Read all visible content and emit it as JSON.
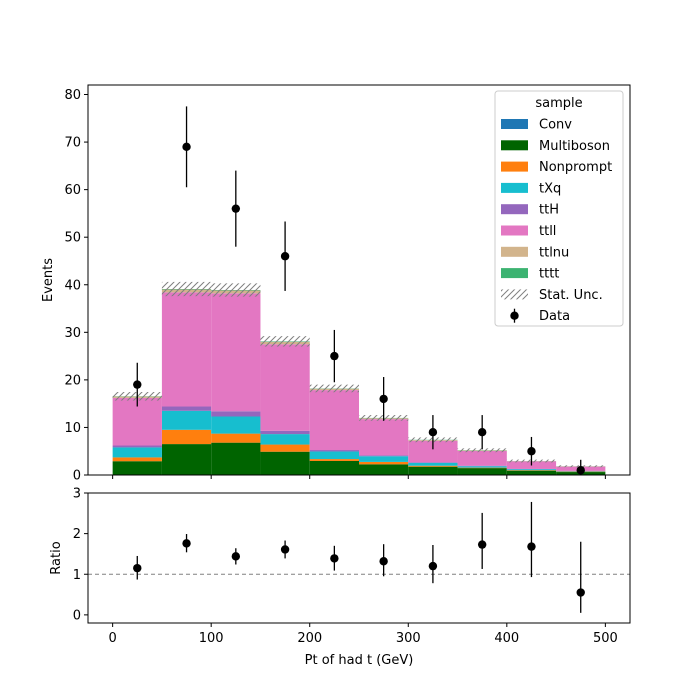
{
  "chart_data": [
    {
      "type": "bar",
      "subtype": "stacked-histogram",
      "xlabel": "Pt of had t (GeV)",
      "ylabel": "Events",
      "bin_edges": [
        0,
        50,
        100,
        150,
        200,
        250,
        300,
        350,
        400,
        450,
        500
      ],
      "xlim": [
        -25,
        525
      ],
      "ylim": [
        0,
        82
      ],
      "yticks": [
        0,
        10,
        20,
        30,
        40,
        50,
        60,
        70,
        80
      ],
      "legend": {
        "title": "sample",
        "placement": "top-right"
      },
      "series": [
        {
          "name": "Conv",
          "color": "#1f77b4",
          "values": [
            0.1,
            0.1,
            0.1,
            0.1,
            0.05,
            0.05,
            0.05,
            0.05,
            0.02,
            0.02
          ]
        },
        {
          "name": "Multiboson",
          "color": "#006400",
          "values": [
            2.8,
            6.4,
            6.7,
            4.8,
            2.9,
            2.2,
            1.7,
            1.4,
            0.9,
            0.6
          ]
        },
        {
          "name": "Nonprompt",
          "color": "#ff7f0e",
          "values": [
            0.8,
            3.0,
            1.9,
            1.5,
            0.4,
            0.5,
            0.2,
            0.1,
            0.1,
            0.1
          ]
        },
        {
          "name": "tXq",
          "color": "#17becf",
          "values": [
            2.1,
            4.0,
            3.6,
            2.2,
            1.6,
            1.2,
            0.6,
            0.3,
            0.2,
            0.1
          ]
        },
        {
          "name": "ttH",
          "color": "#9467bd",
          "values": [
            0.4,
            0.9,
            1.1,
            0.7,
            0.3,
            0.2,
            0.15,
            0.1,
            0.05,
            0.05
          ]
        },
        {
          "name": "ttll",
          "color": "#e377c2",
          "values": [
            10.0,
            24.0,
            24.8,
            18.2,
            12.6,
            7.6,
            4.5,
            3.1,
            1.6,
            0.9
          ]
        },
        {
          "name": "ttlnu",
          "color": "#d2b48c",
          "values": [
            0.3,
            0.6,
            0.6,
            0.5,
            0.3,
            0.2,
            0.15,
            0.1,
            0.05,
            0.05
          ]
        },
        {
          "name": "tttt",
          "color": "#3cb371",
          "values": [
            0.05,
            0.1,
            0.1,
            0.1,
            0.05,
            0.05,
            0.05,
            0.05,
            0.02,
            0.02
          ]
        }
      ],
      "stat_unc": {
        "label": "Stat. Unc.",
        "values": [
          0.9,
          1.5,
          1.4,
          1.1,
          0.8,
          0.6,
          0.5,
          0.4,
          0.3,
          0.2
        ]
      },
      "data": {
        "label": "Data",
        "x": [
          25,
          75,
          125,
          175,
          225,
          275,
          325,
          375,
          425,
          475
        ],
        "y": [
          19,
          69,
          56,
          46,
          25,
          16,
          9,
          9,
          5,
          1
        ],
        "err": [
          4.6,
          8.5,
          8.0,
          7.3,
          5.5,
          4.6,
          3.6,
          3.6,
          3.0,
          2.2
        ]
      }
    },
    {
      "type": "scatter",
      "subtype": "ratio",
      "xlabel": "Pt of had t (GeV)",
      "ylabel": "Ratio",
      "xlim": [
        -25,
        525
      ],
      "xticks": [
        0,
        100,
        200,
        300,
        400,
        500
      ],
      "ylim": [
        -0.2,
        3
      ],
      "yticks": [
        0,
        1,
        2,
        3
      ],
      "reference_line": 1,
      "x": [
        25,
        75,
        125,
        175,
        225,
        275,
        325,
        375,
        425,
        475
      ],
      "y": [
        1.15,
        1.76,
        1.44,
        1.61,
        1.39,
        1.32,
        1.2,
        1.73,
        1.68,
        0.55
      ],
      "err_low": [
        0.28,
        0.22,
        0.2,
        0.22,
        0.3,
        0.37,
        0.42,
        0.6,
        0.75,
        0.5
      ],
      "err_high": [
        0.3,
        0.23,
        0.2,
        0.22,
        0.31,
        0.42,
        0.52,
        0.78,
        1.1,
        1.25
      ]
    }
  ]
}
